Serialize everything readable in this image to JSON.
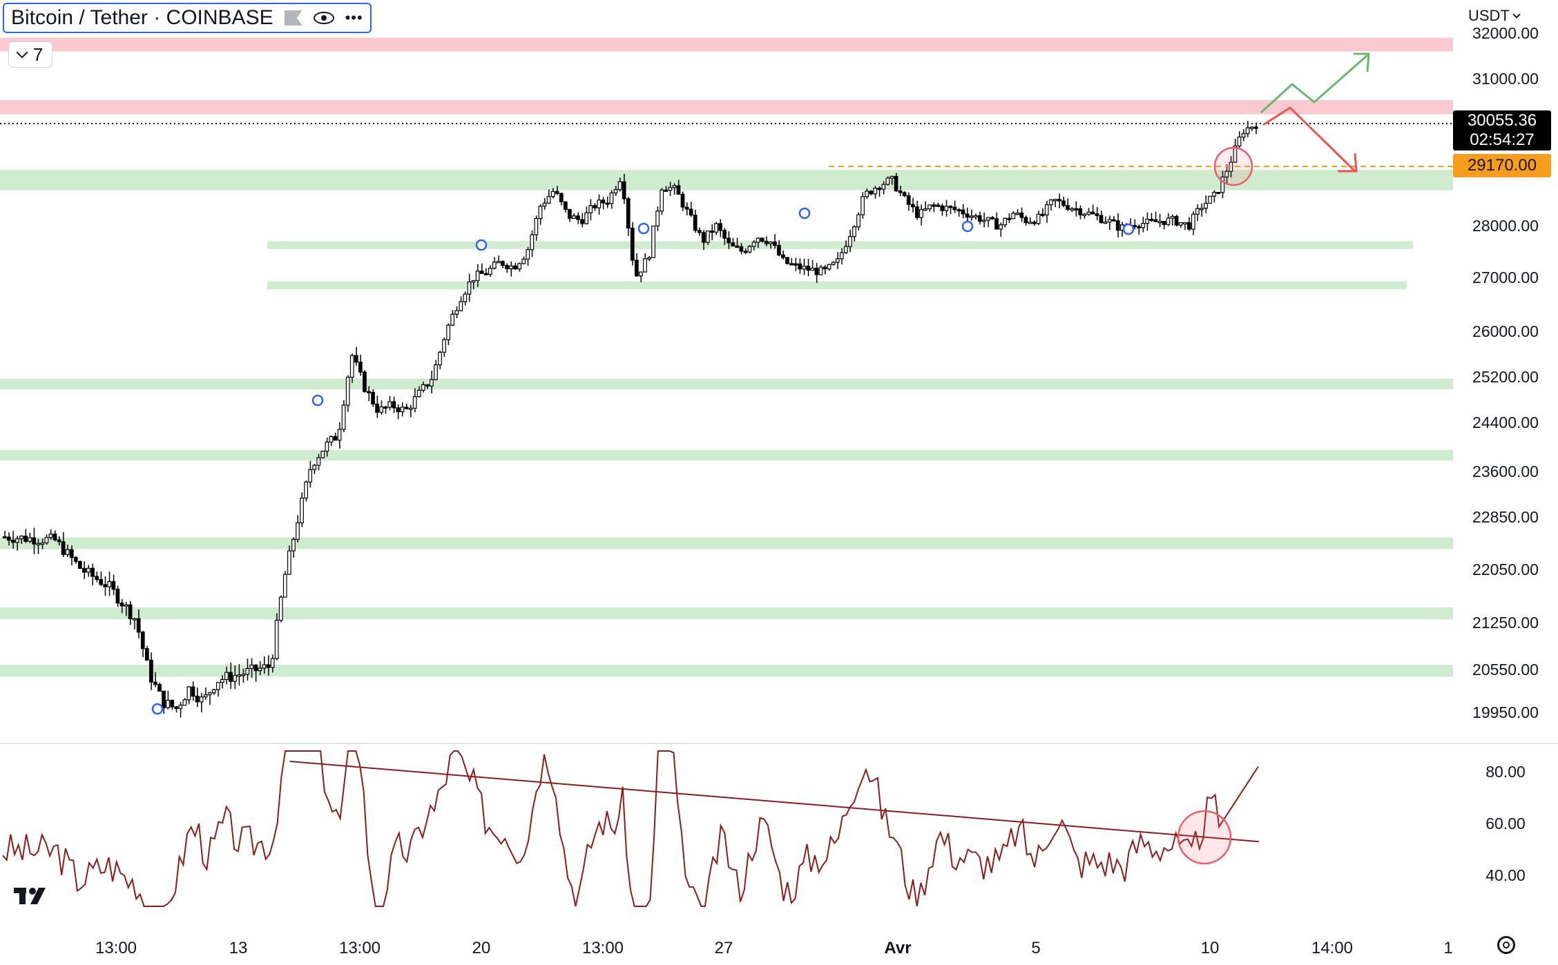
{
  "legend": {
    "title": "Bitcoin / Tether · COINBASE",
    "indicator_count": "7"
  },
  "axis": {
    "currency": "USDT",
    "price_labels": [
      "32000.00",
      "31000.00",
      "28000.00",
      "27000.00",
      "26000.00",
      "25200.00",
      "24400.00",
      "23600.00",
      "22850.00",
      "22050.00",
      "21250.00",
      "20550.00",
      "19950.00"
    ],
    "rsi_labels": [
      "80.00",
      "60.00",
      "40.00"
    ],
    "time_labels": [
      "13:00",
      "13",
      "13:00",
      "20",
      "13:00",
      "27",
      "Avr",
      "5",
      "10",
      "14:00",
      "1"
    ]
  },
  "price_tags": {
    "last_price": "30055.36",
    "countdown": "02:54:27",
    "level": "29170.00"
  },
  "colors": {
    "resistance_zone": "#f9c9cf",
    "support_zone": "#cfeccf",
    "candle": "#000000",
    "rsi_line": "#8e1a1a",
    "bull_arrow": "#66bb6a",
    "bear_arrow": "#ef5350",
    "level_line": "#f79d1b",
    "highlight_circle": "#f05a68"
  },
  "chart_data": {
    "type": "candlestick",
    "symbol": "Bitcoin / Tether · COINBASE",
    "y_range": [
      19500,
      32000
    ],
    "price_axis_ticks": [
      32000,
      31000,
      28000,
      27000,
      26000,
      25200,
      24400,
      23600,
      22850,
      22050,
      21250,
      20550,
      19950
    ],
    "last_price": 30055.36,
    "marked_level": 29170,
    "resistance_zones": [
      [
        31600,
        31900
      ],
      [
        30250,
        30550
      ]
    ],
    "support_zones": [
      [
        28700,
        29100
      ],
      [
        27550,
        27700
      ],
      [
        26780,
        26930
      ],
      [
        24980,
        25170
      ],
      [
        23780,
        23950
      ],
      [
        22360,
        22540
      ],
      [
        21300,
        21480
      ],
      [
        20450,
        20620
      ]
    ],
    "price_path": [
      [
        0,
        22550
      ],
      [
        4,
        22500
      ],
      [
        6,
        22050
      ],
      [
        8,
        21800
      ],
      [
        10,
        21300
      ],
      [
        11,
        20500
      ],
      [
        12,
        20100
      ],
      [
        13,
        20000
      ],
      [
        14,
        20300
      ],
      [
        15,
        20100
      ],
      [
        16,
        20400
      ],
      [
        18,
        20500
      ],
      [
        20,
        20600
      ],
      [
        21,
        21900
      ],
      [
        22,
        22800
      ],
      [
        23,
        23700
      ],
      [
        24,
        24000
      ],
      [
        25,
        24200
      ],
      [
        26,
        25600
      ],
      [
        27,
        25000
      ],
      [
        28,
        24600
      ],
      [
        29,
        24700
      ],
      [
        30,
        24600
      ],
      [
        31,
        24900
      ],
      [
        32,
        25200
      ],
      [
        33,
        26000
      ],
      [
        34,
        26600
      ],
      [
        35,
        27000
      ],
      [
        36,
        27100
      ],
      [
        37,
        27300
      ],
      [
        38,
        27200
      ],
      [
        39,
        27500
      ],
      [
        40,
        28400
      ],
      [
        41,
        28700
      ],
      [
        42,
        28200
      ],
      [
        43,
        28100
      ],
      [
        44,
        28400
      ],
      [
        45,
        28500
      ],
      [
        46,
        29000
      ],
      [
        47,
        27000
      ],
      [
        48,
        27400
      ],
      [
        49,
        28800
      ],
      [
        50,
        28700
      ],
      [
        51,
        28200
      ],
      [
        52,
        27700
      ],
      [
        53,
        28000
      ],
      [
        54,
        27600
      ],
      [
        55,
        27500
      ],
      [
        56,
        27800
      ],
      [
        57,
        27700
      ],
      [
        58,
        27300
      ],
      [
        59,
        27200
      ],
      [
        60,
        27150
      ],
      [
        61,
        27100
      ],
      [
        62,
        27300
      ],
      [
        63,
        27900
      ],
      [
        64,
        28600
      ],
      [
        65,
        28800
      ],
      [
        66,
        28900
      ],
      [
        67,
        28500
      ],
      [
        68,
        28200
      ],
      [
        69,
        28400
      ],
      [
        70,
        28350
      ],
      [
        71,
        28300
      ],
      [
        72,
        28200
      ],
      [
        73,
        28100
      ],
      [
        74,
        28000
      ],
      [
        75,
        28250
      ],
      [
        76,
        28100
      ],
      [
        77,
        28150
      ],
      [
        78,
        28500
      ],
      [
        79,
        28400
      ],
      [
        80,
        28300
      ],
      [
        81,
        28200
      ],
      [
        82,
        28100
      ],
      [
        83,
        27950
      ],
      [
        84,
        28050
      ],
      [
        85,
        28050
      ],
      [
        86,
        28100
      ],
      [
        87,
        28100
      ],
      [
        88,
        28000
      ],
      [
        89,
        28400
      ],
      [
        90,
        28600
      ],
      [
        91,
        29200
      ],
      [
        92,
        29900
      ],
      [
        93,
        30055
      ]
    ],
    "rsi": {
      "y_range": [
        30,
        90
      ],
      "ticks": [
        80,
        60,
        40
      ],
      "trendline": [
        [
          0.186,
          84
        ],
        [
          0.808,
          53
        ]
      ],
      "breakout_highlighted": true
    },
    "annotations": [
      "bullish projection arrow",
      "bearish projection arrow",
      "highlighted breakout candle",
      "highlighted RSI trendline break"
    ]
  }
}
